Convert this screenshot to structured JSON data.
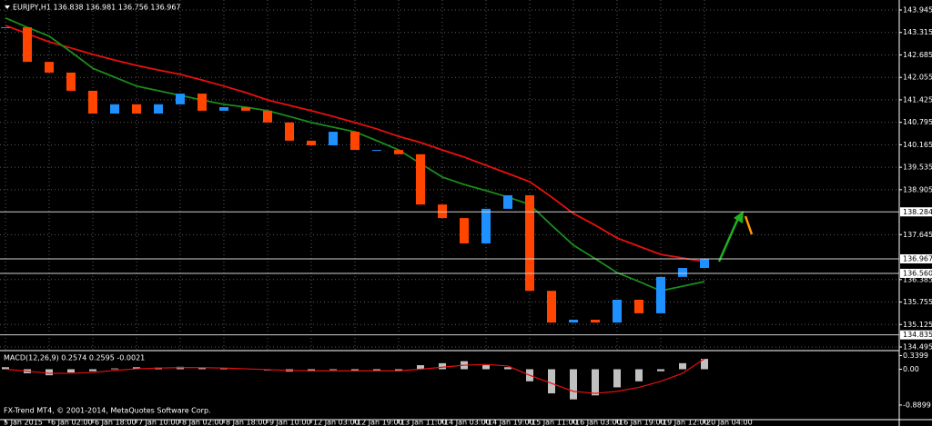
{
  "chart_data": [
    {
      "type": "candlestick",
      "title": "EURJPY,H1  136.838 136.981 136.756 136.967",
      "categories": [
        "5 Jan 2015",
        null,
        "6 Jan 02:00",
        null,
        "6 Jan 18:00",
        null,
        "7 Jan 10:00",
        null,
        "8 Jan 02:00",
        null,
        "8 Jan 18:00",
        null,
        "9 Jan 10:00",
        null,
        "12 Jan 03:00",
        null,
        "12 Jan 19:00",
        null,
        "13 Jan 11:00",
        null,
        "14 Jan 03:00",
        null,
        "14 Jan 19:00",
        null,
        "15 Jan 11:00",
        null,
        "16 Jan 03:00",
        null,
        "16 Jan 19:00",
        null,
        "19 Jan 12:00",
        null,
        "20 Jan 04:00"
      ],
      "values": [
        143.46,
        142.49,
        142.19,
        141.68,
        141.04,
        141.3,
        141.04,
        141.3,
        141.6,
        141.12,
        141.22,
        141.12,
        140.79,
        140.28,
        140.15,
        140.53,
        140.02,
        140.02,
        139.9,
        138.49,
        138.11,
        137.4,
        138.37,
        138.75,
        136.07,
        135.18,
        135.26,
        135.18,
        135.82,
        135.44,
        136.46,
        136.71,
        136.967
      ],
      "color_up": "#1e90ff",
      "color_down": "#ff4500",
      "series": [
        {
          "color": "#e81010",
          "values": [
            143.51,
            143.28,
            143.05,
            142.88,
            142.7,
            142.54,
            142.39,
            142.26,
            142.14,
            141.98,
            141.81,
            141.63,
            141.42,
            141.27,
            141.12,
            140.96,
            140.79,
            140.61,
            140.4,
            140.23,
            140.02,
            139.82,
            139.59,
            139.36,
            139.13,
            138.7,
            138.24,
            137.91,
            137.55,
            137.32,
            137.09,
            136.99,
            136.89
          ]
        },
        {
          "color": "#1a8c1a",
          "values": [
            143.72,
            143.46,
            143.21,
            142.77,
            142.31,
            142.06,
            141.81,
            141.68,
            141.55,
            141.42,
            141.3,
            141.22,
            141.12,
            140.96,
            140.79,
            140.66,
            140.53,
            140.28,
            140.02,
            139.64,
            139.26,
            139.05,
            138.88,
            138.7,
            138.49,
            137.91,
            137.35,
            136.97,
            136.58,
            136.33,
            136.07,
            136.2,
            136.33
          ]
        }
      ],
      "ylim": [
        134.419,
        144.225
      ],
      "yticks": [
        143.945,
        143.315,
        142.685,
        142.055,
        141.425,
        140.795,
        140.165,
        139.535,
        138.905,
        137.645,
        136.385,
        135.755,
        135.125,
        134.495
      ],
      "hlines": [
        138.284,
        136.967,
        {
          "value": 136.56,
          "label": "136.560"
        },
        134.835
      ],
      "grid": true
    },
    {
      "type": "bar",
      "title": "MACD(12,26,9) 0.2574 0.2595 -0.0021",
      "values": [
        0.05,
        -0.1,
        -0.15,
        -0.08,
        -0.05,
        0.02,
        0.05,
        0.04,
        0.06,
        0.03,
        0.02,
        0.0,
        -0.03,
        -0.06,
        -0.05,
        -0.02,
        -0.04,
        -0.03,
        -0.05,
        0.1,
        0.15,
        0.2,
        0.1,
        0.05,
        -0.3,
        -0.6,
        -0.75,
        -0.65,
        -0.45,
        -0.3,
        -0.05,
        0.15,
        0.2574
      ],
      "color": "#c0c0c0",
      "series": [
        {
          "color": "#e81010",
          "values": [
            0.0,
            -0.05,
            -0.1,
            -0.1,
            -0.08,
            -0.03,
            0.01,
            0.03,
            0.04,
            0.04,
            0.03,
            0.01,
            -0.01,
            -0.03,
            -0.04,
            -0.04,
            -0.04,
            -0.04,
            -0.04,
            0.0,
            0.05,
            0.1,
            0.12,
            0.08,
            -0.15,
            -0.35,
            -0.55,
            -0.6,
            -0.55,
            -0.45,
            -0.3,
            -0.1,
            0.2595
          ]
        }
      ],
      "ylim": [
        -1.23,
        0.44
      ],
      "yticks": [
        0.3399,
        {
          "value": 0,
          "label": "0.00"
        },
        -0.8899
      ],
      "annotation": "FX-Trend MT4, © 2001-2014, MetaQuotes Software Corp."
    }
  ]
}
